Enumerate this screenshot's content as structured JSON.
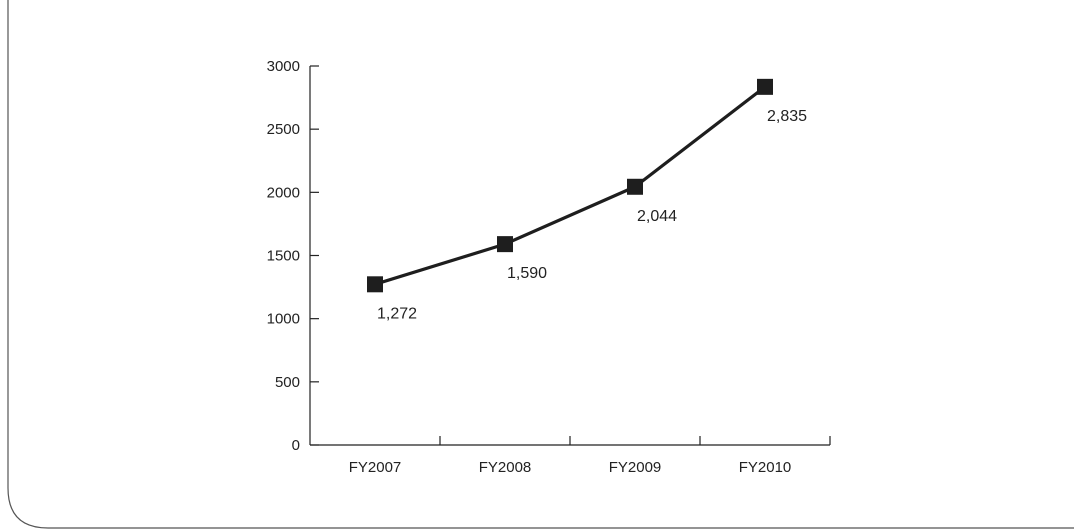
{
  "chart_data": {
    "type": "line",
    "title": "",
    "xlabel": "",
    "ylabel": "",
    "categories": [
      "FY2007",
      "FY2008",
      "FY2009",
      "FY2010"
    ],
    "series": [
      {
        "values": [
          1272,
          1590,
          2044,
          2835
        ],
        "data_labels": [
          "1,272",
          "1,590",
          "2,044",
          "2,835"
        ],
        "color": "#1e1e1e",
        "marker": "square"
      }
    ],
    "ylim": [
      0,
      3000
    ],
    "yticks": [
      "0",
      "500",
      "1000",
      "1500",
      "2000",
      "2500",
      "3000"
    ],
    "grid": false,
    "legend": "none"
  }
}
